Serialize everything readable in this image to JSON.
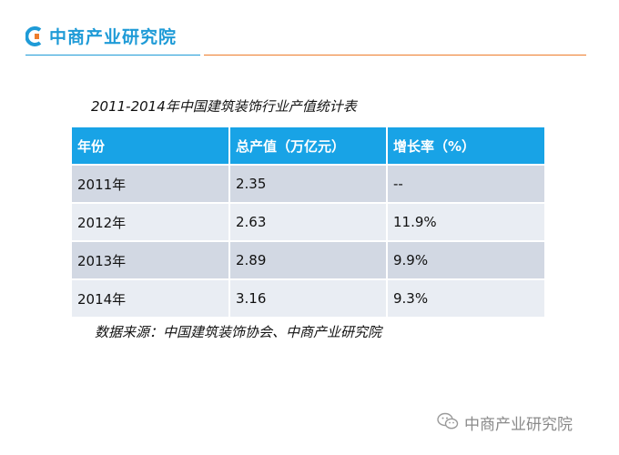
{
  "brand": {
    "name": "中商产业研究院"
  },
  "table": {
    "title": "2011-2014年中国建筑装饰行业产值统计表",
    "headers": [
      "年份",
      "总产值（万亿元）",
      "增长率（%）"
    ],
    "rows": [
      [
        "2011年",
        "2.35",
        "--"
      ],
      [
        "2012年",
        "2.63",
        "11.9%"
      ],
      [
        "2013年",
        "2.89",
        "9.9%"
      ],
      [
        "2014年",
        "3.16",
        "9.3%"
      ]
    ]
  },
  "source": "数据来源：中国建筑装饰协会、中商产业研究院",
  "watermark": {
    "text": "中商产业研究院",
    "icon": "wechat-icon"
  },
  "colors": {
    "brand_blue": "#1f9bd7",
    "accent_orange": "#ee7c2b",
    "header_blue": "#18a3e6"
  }
}
